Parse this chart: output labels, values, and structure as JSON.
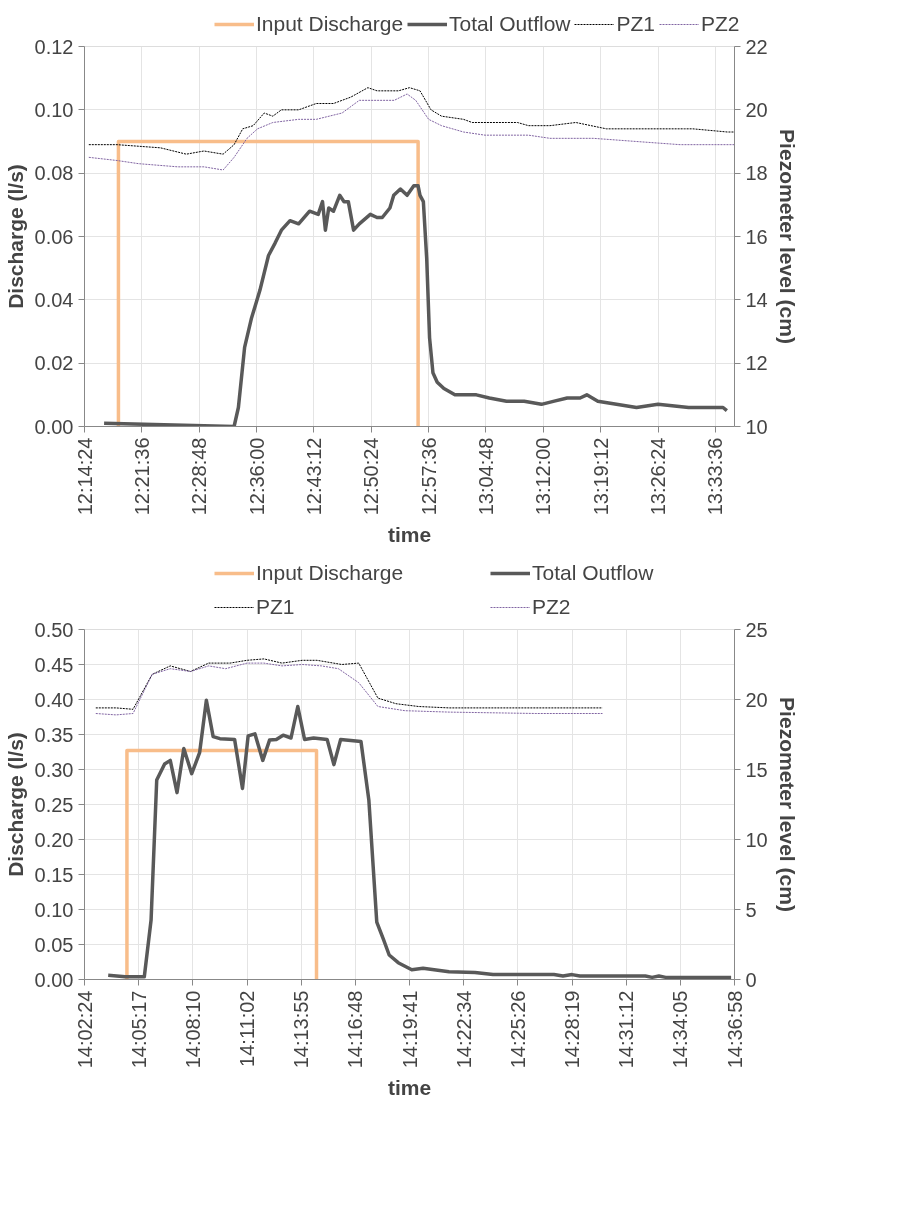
{
  "chart_data": [
    {
      "type": "line",
      "xlabel": "time",
      "ylabel": "Discharge (l/s)",
      "y2label": "Piezometer level (cm)",
      "xlim": [
        12.24,
        13.6
      ],
      "ylim": [
        0,
        0.12
      ],
      "y2lim": [
        10,
        22
      ],
      "xticks": [
        {
          "value": 12.24,
          "label": "12:14:24"
        },
        {
          "value": 12.36,
          "label": "12:21:36"
        },
        {
          "value": 12.48,
          "label": "12:28:48"
        },
        {
          "value": 12.6,
          "label": "12:36:00"
        },
        {
          "value": 12.72,
          "label": "12:43:12"
        },
        {
          "value": 12.84,
          "label": "12:50:24"
        },
        {
          "value": 12.96,
          "label": "12:57:36"
        },
        {
          "value": 13.08,
          "label": "13:04:48"
        },
        {
          "value": 13.2,
          "label": "13:12:00"
        },
        {
          "value": 13.32,
          "label": "13:19:12"
        },
        {
          "value": 13.44,
          "label": "13:26:24"
        },
        {
          "value": 13.56,
          "label": "13:33:36"
        }
      ],
      "yticks": [
        {
          "value": 0,
          "label": "0.00"
        },
        {
          "value": 0.02,
          "label": "0.02"
        },
        {
          "value": 0.04,
          "label": "0.04"
        },
        {
          "value": 0.06,
          "label": "0.06"
        },
        {
          "value": 0.08,
          "label": "0.08"
        },
        {
          "value": 0.1,
          "label": "0.10"
        },
        {
          "value": 0.12,
          "label": "0.12"
        }
      ],
      "y2ticks": [
        10,
        12,
        14,
        16,
        18,
        20,
        22
      ],
      "grid": true,
      "legend": "top",
      "marker": "none",
      "series": [
        {
          "name": "Input Discharge",
          "color": "#f8bd8a",
          "line_style": "solid",
          "x": [
            12.311,
            12.311,
            12.938,
            12.938
          ],
          "values": [
            0,
            0.09,
            0.09,
            0
          ]
        },
        {
          "name": "Total Outflow",
          "color": "#595959",
          "line_style": "solid",
          "x": [
            12.281,
            12.553,
            12.562,
            12.575,
            12.589,
            12.607,
            12.625,
            12.639,
            12.652,
            12.67,
            12.688,
            12.711,
            12.729,
            12.738,
            12.744,
            12.751,
            12.761,
            12.774,
            12.783,
            12.792,
            12.803,
            12.815,
            12.838,
            12.852,
            12.863,
            12.879,
            12.887,
            12.901,
            12.915,
            12.929,
            12.938,
            12.942,
            12.949,
            12.956,
            12.962,
            12.969,
            12.978,
            12.992,
            13.015,
            13.06,
            13.087,
            13.123,
            13.16,
            13.196,
            13.223,
            13.25,
            13.277,
            13.291,
            13.314,
            13.353,
            13.395,
            13.44,
            13.504,
            13.522,
            13.558,
            13.576,
            13.584
          ],
          "values": [
            0.001,
            0,
            0.006,
            0.025,
            0.034,
            0.043,
            0.054,
            0.058,
            0.062,
            0.065,
            0.064,
            0.068,
            0.067,
            0.071,
            0.062,
            0.069,
            0.068,
            0.073,
            0.071,
            0.071,
            0.062,
            0.064,
            0.067,
            0.066,
            0.066,
            0.069,
            0.073,
            0.075,
            0.073,
            0.076,
            0.076,
            0.073,
            0.071,
            0.053,
            0.028,
            0.017,
            0.014,
            0.012,
            0.01,
            0.01,
            0.009,
            0.008,
            0.008,
            0.007,
            0.008,
            0.009,
            0.009,
            0.01,
            0.008,
            0.007,
            0.006,
            0.007,
            0.006,
            0.006,
            0.006,
            0.006,
            0.005
          ]
        },
        {
          "name": "PZ1",
          "color": "#000000",
          "line_style": "dotted",
          "axis": "y2",
          "x": [
            12.249,
            12.308,
            12.399,
            12.453,
            12.49,
            12.53,
            12.553,
            12.571,
            12.593,
            12.616,
            12.634,
            12.652,
            12.688,
            12.725,
            12.761,
            12.797,
            12.833,
            12.852,
            12.897,
            12.92,
            12.942,
            12.965,
            12.987,
            13.033,
            13.051,
            13.123,
            13.146,
            13.169,
            13.214,
            13.268,
            13.332,
            13.44,
            13.495,
            13.513,
            13.585,
            13.6
          ],
          "values": [
            18.9,
            18.9,
            18.8,
            18.6,
            18.7,
            18.6,
            18.9,
            19.4,
            19.5,
            19.9,
            19.8,
            20,
            20,
            20.2,
            20.2,
            20.4,
            20.7,
            20.6,
            20.6,
            20.7,
            20.6,
            20,
            19.8,
            19.7,
            19.6,
            19.6,
            19.6,
            19.5,
            19.5,
            19.6,
            19.4,
            19.4,
            19.4,
            19.4,
            19.3,
            19.3
          ]
        },
        {
          "name": "PZ2",
          "color": "#8064a2",
          "line_style": "dotted",
          "axis": "y2",
          "x": [
            12.249,
            12.308,
            12.353,
            12.435,
            12.49,
            12.53,
            12.553,
            12.58,
            12.602,
            12.634,
            12.688,
            12.725,
            12.779,
            12.815,
            12.852,
            12.888,
            12.915,
            12.933,
            12.96,
            12.987,
            13.033,
            13.078,
            13.169,
            13.214,
            13.305,
            13.395,
            13.486,
            13.6
          ],
          "values": [
            18.5,
            18.4,
            18.3,
            18.2,
            18.2,
            18.1,
            18.5,
            19.1,
            19.4,
            19.6,
            19.7,
            19.7,
            19.9,
            20.3,
            20.3,
            20.3,
            20.5,
            20.3,
            19.7,
            19.5,
            19.3,
            19.2,
            19.2,
            19.1,
            19.1,
            19,
            18.9,
            18.9
          ]
        }
      ]
    },
    {
      "type": "line",
      "xlabel": "time",
      "ylabel": "Discharge (l/s)",
      "y2label": "Piezometer level (cm)",
      "xlim": [
        14.04,
        14.616
      ],
      "ylim": [
        0,
        0.5
      ],
      "y2lim": [
        0,
        25
      ],
      "xticks": [
        {
          "value": 14.04,
          "label": "14:02:24"
        },
        {
          "value": 14.088,
          "label": "14:05:17"
        },
        {
          "value": 14.136,
          "label": "14:08:10"
        },
        {
          "value": 14.184,
          "label": "14:11:02"
        },
        {
          "value": 14.232,
          "label": "14:13:55"
        },
        {
          "value": 14.28,
          "label": "14:16:48"
        },
        {
          "value": 14.328,
          "label": "14:19:41"
        },
        {
          "value": 14.376,
          "label": "14:22:34"
        },
        {
          "value": 14.424,
          "label": "14:25:26"
        },
        {
          "value": 14.472,
          "label": "14:28:19"
        },
        {
          "value": 14.52,
          "label": "14:31:12"
        },
        {
          "value": 14.568,
          "label": "14:34:05"
        },
        {
          "value": 14.616,
          "label": "14:36:58"
        }
      ],
      "yticks": [
        {
          "value": 0,
          "label": "0.00"
        },
        {
          "value": 0.05,
          "label": "0.05"
        },
        {
          "value": 0.1,
          "label": "0.10"
        },
        {
          "value": 0.15,
          "label": "0.15"
        },
        {
          "value": 0.2,
          "label": "0.20"
        },
        {
          "value": 0.25,
          "label": "0.25"
        },
        {
          "value": 0.3,
          "label": "0.30"
        },
        {
          "value": 0.35,
          "label": "0.35"
        },
        {
          "value": 0.4,
          "label": "0.40"
        },
        {
          "value": 0.45,
          "label": "0.45"
        },
        {
          "value": 0.5,
          "label": "0.50"
        }
      ],
      "y2ticks": [
        0,
        5,
        10,
        15,
        20,
        25
      ],
      "grid": true,
      "legend": "top",
      "marker": "none",
      "series": [
        {
          "name": "Input Discharge",
          "color": "#f8bd8a",
          "line_style": "solid",
          "x": [
            14.0776,
            14.0776,
            14.2456,
            14.2456
          ],
          "values": [
            0,
            0.327,
            0.327,
            0
          ]
        },
        {
          "name": "Total Outflow",
          "color": "#595959",
          "line_style": "solid",
          "x": [
            14.061,
            14.076,
            14.093,
            14.099,
            14.104,
            14.111,
            14.116,
            14.122,
            14.128,
            14.135,
            14.142,
            14.148,
            14.154,
            14.16,
            14.173,
            14.18,
            14.185,
            14.191,
            14.198,
            14.204,
            14.21,
            14.216,
            14.223,
            14.229,
            14.235,
            14.243,
            14.255,
            14.261,
            14.267,
            14.285,
            14.292,
            14.299,
            14.305,
            14.31,
            14.318,
            14.33,
            14.34,
            14.363,
            14.386,
            14.402,
            14.421,
            14.456,
            14.464,
            14.472,
            14.479,
            14.537,
            14.543,
            14.549,
            14.555,
            14.613
          ],
          "values": [
            0.006,
            0.004,
            0.004,
            0.085,
            0.285,
            0.308,
            0.313,
            0.267,
            0.33,
            0.294,
            0.324,
            0.399,
            0.347,
            0.344,
            0.343,
            0.273,
            0.348,
            0.351,
            0.313,
            0.342,
            0.343,
            0.349,
            0.345,
            0.39,
            0.343,
            0.345,
            0.343,
            0.307,
            0.343,
            0.34,
            0.256,
            0.082,
            0.057,
            0.035,
            0.024,
            0.014,
            0.016,
            0.011,
            0.01,
            0.007,
            0.007,
            0.007,
            0.005,
            0.007,
            0.005,
            0.005,
            0.003,
            0.005,
            0.003,
            0.003
          ]
        },
        {
          "name": "PZ1",
          "color": "#000000",
          "line_style": "dotted",
          "axis": "y2",
          "x": [
            14.05,
            14.068,
            14.083,
            14.1,
            14.116,
            14.134,
            14.15,
            14.169,
            14.184,
            14.199,
            14.215,
            14.233,
            14.246,
            14.268,
            14.283,
            14.3,
            14.316,
            14.336,
            14.363,
            14.402,
            14.417,
            14.44,
            14.479,
            14.499
          ],
          "values": [
            19.4,
            19.4,
            19.3,
            21.8,
            22.4,
            22,
            22.6,
            22.6,
            22.8,
            22.9,
            22.6,
            22.8,
            22.8,
            22.5,
            22.6,
            20.1,
            19.7,
            19.5,
            19.4,
            19.4,
            19.4,
            19.4,
            19.4,
            19.4
          ]
        },
        {
          "name": "PZ2",
          "color": "#8064a2",
          "line_style": "dotted",
          "axis": "y2",
          "x": [
            14.05,
            14.068,
            14.083,
            14.1,
            14.116,
            14.134,
            14.15,
            14.165,
            14.184,
            14.199,
            14.215,
            14.233,
            14.25,
            14.265,
            14.283,
            14.3,
            14.324,
            14.363,
            14.44,
            14.499
          ],
          "values": [
            19,
            18.9,
            19,
            21.8,
            22.2,
            22,
            22.4,
            22.2,
            22.6,
            22.6,
            22.4,
            22.5,
            22.4,
            22.2,
            21.2,
            19.5,
            19.2,
            19.1,
            19,
            19
          ]
        }
      ]
    }
  ]
}
